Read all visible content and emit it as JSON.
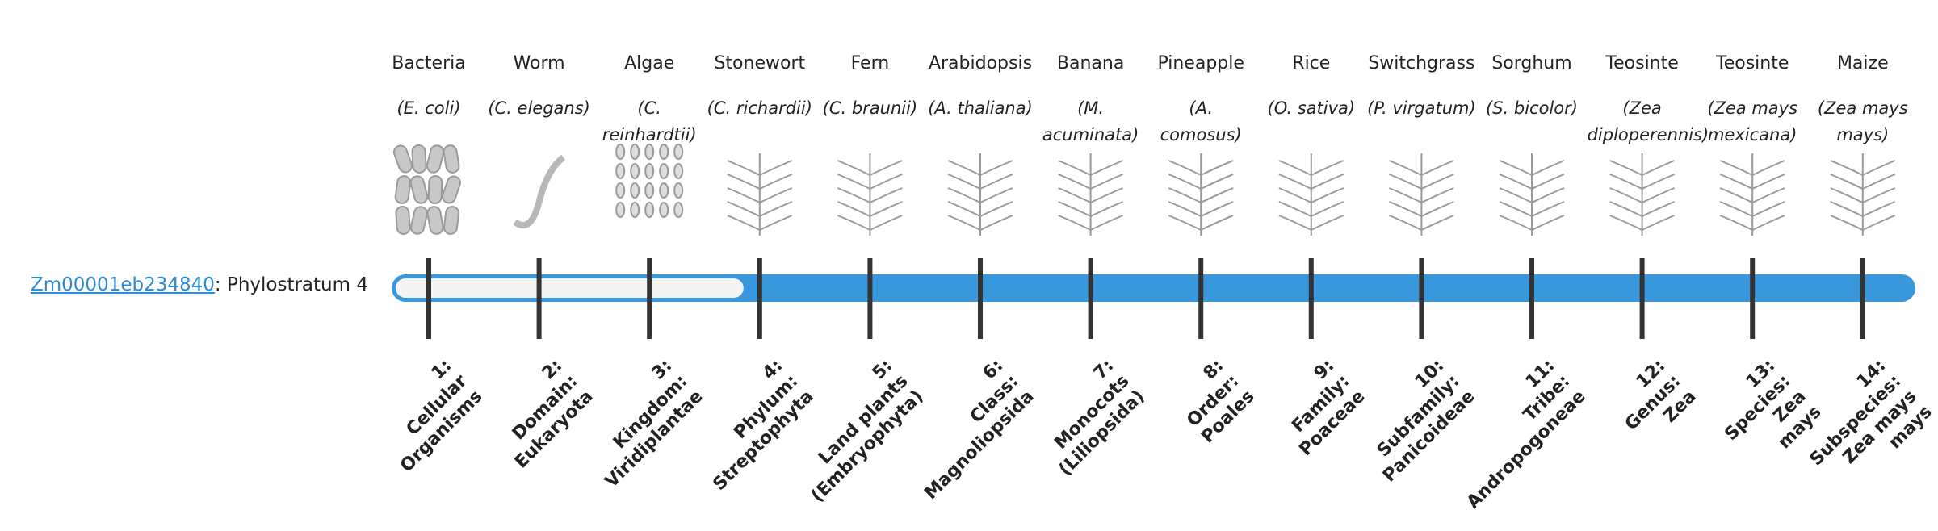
{
  "gene": {
    "id": "Zm00001eb234840",
    "stratum_text": ": Phylostratum 4",
    "phylostratum": 4
  },
  "organisms": [
    {
      "name": "Bacteria",
      "species": "(E. coli)"
    },
    {
      "name": "Worm",
      "species": "(C. elegans)"
    },
    {
      "name": "Algae",
      "species": "(C. reinhardtii)"
    },
    {
      "name": "Stonewort",
      "species": "(C. richardii)"
    },
    {
      "name": "Fern",
      "species": "(C. braunii)"
    },
    {
      "name": "Arabidopsis",
      "species": "(A. thaliana)"
    },
    {
      "name": "Banana",
      "species": "(M. acuminata)"
    },
    {
      "name": "Pineapple",
      "species": "(A. comosus)"
    },
    {
      "name": "Rice",
      "species": "(O. sativa)"
    },
    {
      "name": "Switchgrass",
      "species": "(P. virgatum)"
    },
    {
      "name": "Sorghum",
      "species": "(S. bicolor)"
    },
    {
      "name": "Teosinte",
      "species": "(Zea diploperennis)"
    },
    {
      "name": "Teosinte",
      "species": "(Zea mays mexicana)"
    },
    {
      "name": "Maize",
      "species": "(Zea mays mays)"
    }
  ],
  "strata": [
    [
      "1:",
      "Cellular",
      "Organisms"
    ],
    [
      "2:",
      "Domain:",
      "Eukaryota"
    ],
    [
      "3:",
      "Kingdom:",
      "Viridiplantae"
    ],
    [
      "4:",
      "Phylum:",
      "Streptophyta"
    ],
    [
      "5:",
      "Land plants",
      "(Embryophyta)"
    ],
    [
      "6:",
      "Class:",
      "Magnoliopsida"
    ],
    [
      "7:",
      "Monocots",
      "(Liliopsida)"
    ],
    [
      "8:",
      "Order:",
      "Poales"
    ],
    [
      "9:",
      "Family:",
      "Poaceae"
    ],
    [
      "10:",
      "Subfamily:",
      "Panicoideae"
    ],
    [
      "11:",
      "Tribe:",
      "Andropogoneae"
    ],
    [
      "12:",
      "Genus:",
      "Zea"
    ],
    [
      "13:",
      "Species:",
      "Zea",
      "mays"
    ],
    [
      "14:",
      "Subspecies:",
      "Zea mays",
      "mays"
    ]
  ]
}
